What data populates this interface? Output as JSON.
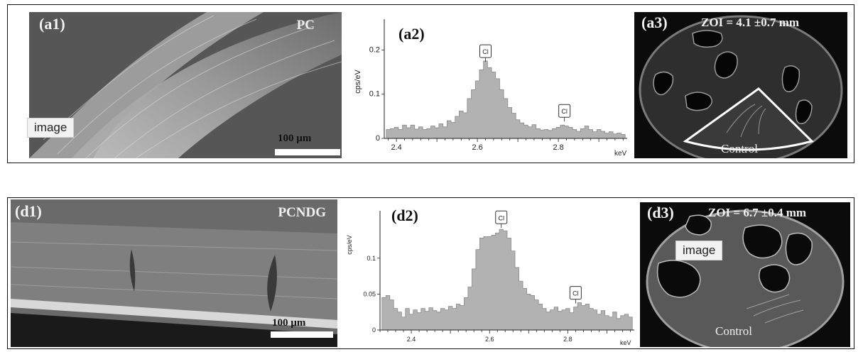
{
  "placeholder_label": "image",
  "rows": {
    "a": {
      "sem": {
        "label": "(a1)",
        "sample": "PC",
        "scale": "100 µm"
      },
      "spectrum": {
        "label": "(a2)",
        "peak_label": "Cl"
      },
      "plate": {
        "label": "(a3)",
        "zoi": "ZOI = 4.1 ±0.7 mm",
        "control": "Control"
      }
    },
    "d": {
      "sem": {
        "label": "(d1)",
        "sample": "PCNDG",
        "scale": "100 µm"
      },
      "spectrum": {
        "label": "(d2)",
        "peak_label": "Cl"
      },
      "plate": {
        "label": "(d3)",
        "zoi": "ZOI = 6.7 ±0.4 mm",
        "control": "Control"
      }
    }
  },
  "chart_data": [
    {
      "type": "area",
      "panel": "a2",
      "ylabel": "cps/eV",
      "xlabel": "keV",
      "xlim": [
        2.37,
        2.97
      ],
      "ylim": [
        0,
        0.26
      ],
      "xticks": [
        2.4,
        2.6,
        2.8
      ],
      "yticks": [
        0,
        0.1,
        0.2
      ],
      "ytick_labels": [
        "0",
        "0.1",
        "0.2"
      ],
      "peaks": [
        {
          "label": "Cl",
          "x": 2.62,
          "y": 0.17
        },
        {
          "label": "Cl",
          "x": 2.815,
          "y": 0.035
        }
      ],
      "x": [
        2.38,
        2.39,
        2.4,
        2.41,
        2.42,
        2.43,
        2.44,
        2.45,
        2.46,
        2.47,
        2.48,
        2.49,
        2.5,
        2.51,
        2.52,
        2.53,
        2.54,
        2.55,
        2.56,
        2.57,
        2.58,
        2.59,
        2.6,
        2.61,
        2.62,
        2.63,
        2.64,
        2.65,
        2.66,
        2.67,
        2.68,
        2.69,
        2.7,
        2.71,
        2.72,
        2.73,
        2.74,
        2.75,
        2.76,
        2.77,
        2.78,
        2.79,
        2.8,
        2.81,
        2.82,
        2.83,
        2.84,
        2.85,
        2.86,
        2.87,
        2.88,
        2.89,
        2.9,
        2.91,
        2.92,
        2.93,
        2.94,
        2.95,
        2.96
      ],
      "y": [
        0.02,
        0.022,
        0.025,
        0.02,
        0.03,
        0.024,
        0.03,
        0.021,
        0.026,
        0.02,
        0.022,
        0.028,
        0.024,
        0.033,
        0.026,
        0.04,
        0.036,
        0.05,
        0.062,
        0.058,
        0.09,
        0.11,
        0.13,
        0.155,
        0.175,
        0.16,
        0.15,
        0.135,
        0.11,
        0.09,
        0.07,
        0.057,
        0.042,
        0.035,
        0.03,
        0.026,
        0.031,
        0.022,
        0.019,
        0.02,
        0.018,
        0.022,
        0.025,
        0.03,
        0.028,
        0.025,
        0.02,
        0.016,
        0.022,
        0.028,
        0.02,
        0.015,
        0.02,
        0.016,
        0.012,
        0.015,
        0.01,
        0.012,
        0.009
      ]
    },
    {
      "type": "area",
      "panel": "d2",
      "ylabel": "cps/eV",
      "xlabel": "keV",
      "xlim": [
        2.32,
        2.97
      ],
      "ylim": [
        0,
        0.16
      ],
      "xticks": [
        2.4,
        2.6,
        2.8
      ],
      "yticks": [
        0,
        0.05,
        0.1
      ],
      "ytick_labels": [
        "0",
        "0.05",
        "0.1"
      ],
      "peaks": [
        {
          "label": "Cl",
          "x": 2.63,
          "y": 0.14
        },
        {
          "label": "Cl",
          "x": 2.82,
          "y": 0.035
        }
      ],
      "x": [
        2.33,
        2.34,
        2.35,
        2.36,
        2.37,
        2.38,
        2.39,
        2.4,
        2.41,
        2.42,
        2.43,
        2.44,
        2.45,
        2.46,
        2.47,
        2.48,
        2.49,
        2.5,
        2.51,
        2.52,
        2.53,
        2.54,
        2.55,
        2.56,
        2.57,
        2.58,
        2.59,
        2.6,
        2.61,
        2.62,
        2.63,
        2.64,
        2.65,
        2.66,
        2.67,
        2.68,
        2.69,
        2.7,
        2.71,
        2.72,
        2.73,
        2.74,
        2.75,
        2.76,
        2.77,
        2.78,
        2.79,
        2.8,
        2.81,
        2.82,
        2.83,
        2.84,
        2.85,
        2.86,
        2.87,
        2.88,
        2.89,
        2.9,
        2.91,
        2.92,
        2.93,
        2.94,
        2.95,
        2.96
      ],
      "y": [
        0.045,
        0.048,
        0.042,
        0.03,
        0.025,
        0.018,
        0.03,
        0.022,
        0.028,
        0.024,
        0.03,
        0.026,
        0.031,
        0.027,
        0.025,
        0.03,
        0.028,
        0.033,
        0.03,
        0.036,
        0.034,
        0.045,
        0.06,
        0.085,
        0.112,
        0.128,
        0.13,
        0.13,
        0.132,
        0.135,
        0.14,
        0.138,
        0.128,
        0.11,
        0.087,
        0.068,
        0.058,
        0.05,
        0.048,
        0.042,
        0.036,
        0.03,
        0.025,
        0.028,
        0.032,
        0.026,
        0.028,
        0.03,
        0.024,
        0.032,
        0.038,
        0.034,
        0.036,
        0.03,
        0.028,
        0.022,
        0.027,
        0.02,
        0.018,
        0.025,
        0.016,
        0.02,
        0.022,
        0.018
      ]
    }
  ]
}
